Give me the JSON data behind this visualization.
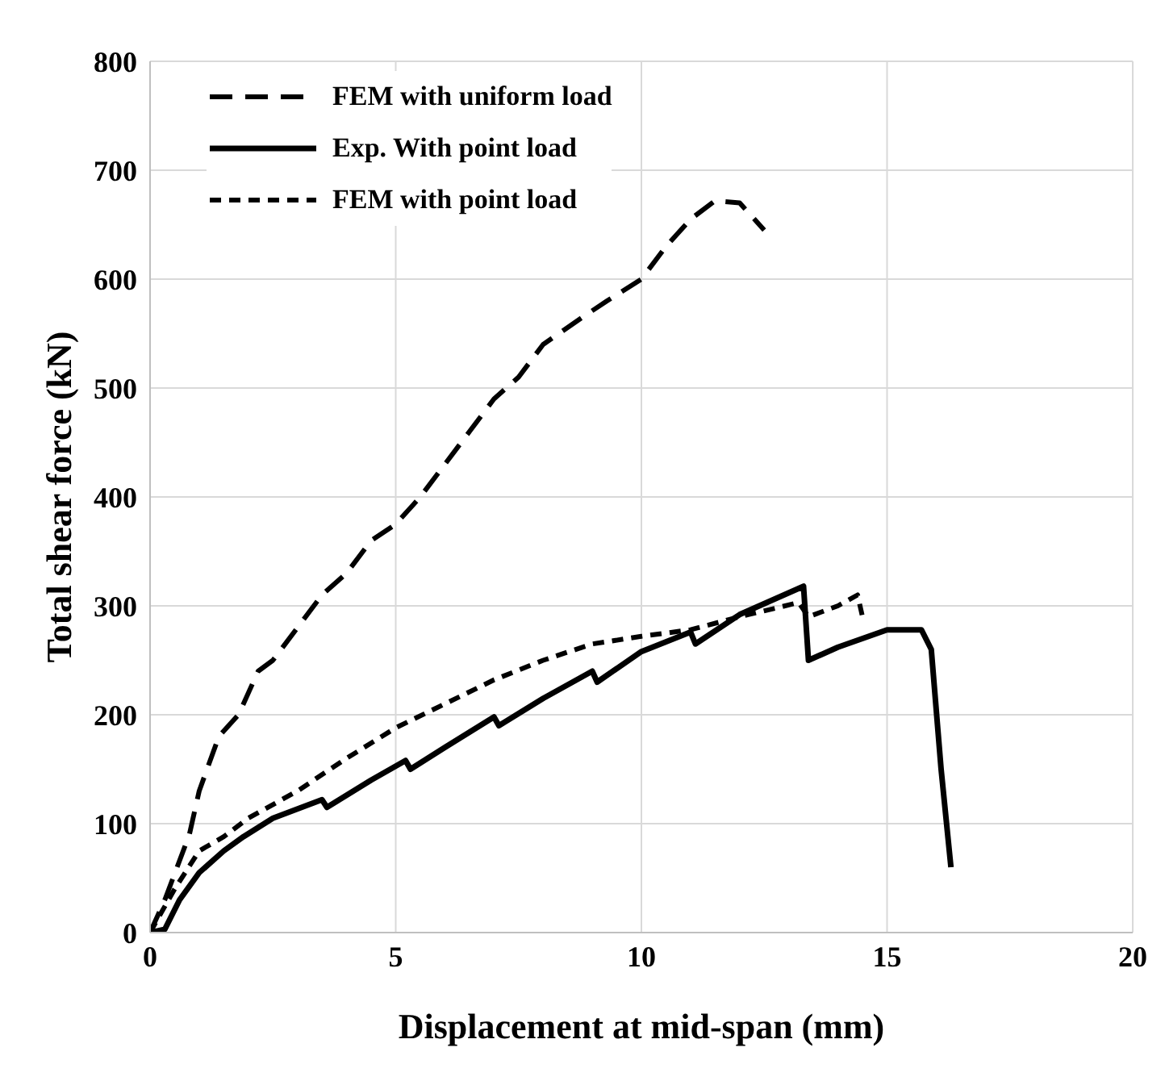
{
  "chart_data": {
    "type": "line",
    "xlabel": "Displacement at mid-span (mm)",
    "ylabel": "Total shear force (kN)",
    "xlim": [
      0,
      20
    ],
    "xticks": [
      0,
      5,
      10,
      15,
      20
    ],
    "ylim": [
      0,
      800
    ],
    "yticks": [
      0,
      100,
      200,
      300,
      400,
      500,
      600,
      700,
      800
    ],
    "grid": true,
    "legend": "top left",
    "marker": "none",
    "series": [
      {
        "name": "FEM with uniform load",
        "color": "#000000",
        "line_style": "dashed",
        "x": [
          0,
          0.3,
          0.8,
          1,
          1.4,
          1.8,
          2.2,
          2.5,
          3,
          3.5,
          4,
          4.5,
          5,
          5.5,
          6,
          6.5,
          7,
          7.5,
          8,
          8.8,
          9.3,
          10,
          10.5,
          11,
          11.5,
          12,
          12.5
        ],
        "values": [
          0,
          30,
          90,
          130,
          180,
          200,
          240,
          250,
          280,
          310,
          330,
          360,
          375,
          400,
          430,
          460,
          490,
          510,
          540,
          565,
          580,
          600,
          630,
          655,
          672,
          670,
          645
        ]
      },
      {
        "name": "Exp. With point load",
        "color": "#000000",
        "line_style": "solid",
        "x": [
          0,
          0.3,
          0.6,
          1,
          1.5,
          1.9,
          2.5,
          3.5,
          3.6,
          4.5,
          5.2,
          5.3,
          6,
          7,
          7.1,
          8,
          9,
          9.1,
          10,
          11,
          11.1,
          12,
          13.3,
          13.4,
          14,
          15,
          15.7,
          15.9,
          16.1,
          16.3
        ],
        "values": [
          0,
          3,
          30,
          55,
          75,
          88,
          105,
          122,
          115,
          140,
          158,
          150,
          170,
          198,
          190,
          215,
          240,
          230,
          258,
          276,
          265,
          292,
          318,
          250,
          262,
          278,
          278,
          260,
          150,
          60
        ]
      },
      {
        "name": "FEM with point load",
        "color": "#000000",
        "line_style": "dotted",
        "x": [
          0,
          0.5,
          1,
          1.5,
          2,
          3,
          4,
          5,
          6,
          7,
          8,
          9,
          10,
          11,
          12,
          13.2,
          13.4,
          14,
          14.4,
          14.5
        ],
        "values": [
          0,
          40,
          75,
          88,
          105,
          130,
          160,
          188,
          210,
          232,
          250,
          265,
          272,
          278,
          290,
          303,
          290,
          300,
          310,
          290
        ]
      }
    ]
  }
}
